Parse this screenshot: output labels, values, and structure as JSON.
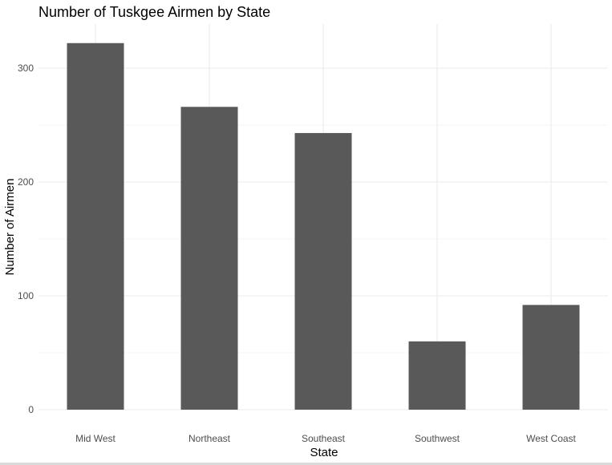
{
  "chart_data": {
    "type": "bar",
    "title": "Number of Tuskgee Airmen by State",
    "xlabel": "State",
    "ylabel": "Number of Airmen",
    "categories": [
      "Mid West",
      "Northeast",
      "Southeast",
      "Southwest",
      "West Coast"
    ],
    "values": [
      322,
      266,
      243,
      60,
      92
    ],
    "ylim": [
      0,
      335
    ],
    "yticks": [
      0,
      100,
      200,
      300
    ],
    "ytick_labels": [
      "0",
      "100",
      "200",
      "300"
    ],
    "y_minor_ticks": [
      50,
      150,
      250
    ],
    "grid": true,
    "legend": "none",
    "bar_color": "#595959",
    "grid_color": "#ebebeb"
  }
}
